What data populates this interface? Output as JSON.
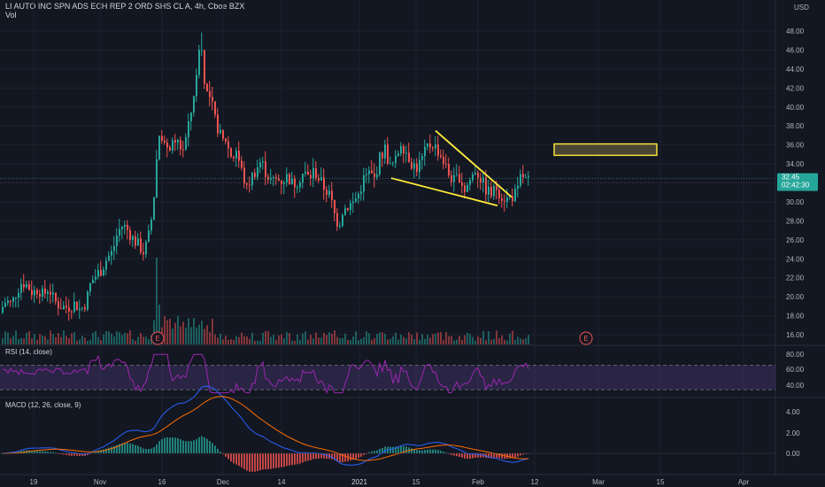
{
  "header": {
    "symbol_line": "LI AUTO INC SPN ADS ECH REP 2 ORD SHS CL A, 4h, Cboe BZX",
    "volume_label": "Vol",
    "currency": "USD"
  },
  "price_tag": {
    "value": "32.45",
    "countdown": "02:42:30"
  },
  "earnings_marker": "E",
  "rsi": {
    "label": "RSI (14, close)",
    "ticks": [
      "80.00",
      "60.00",
      "40.00"
    ]
  },
  "macd": {
    "label": "MACD (12, 26, close, 9)",
    "ticks": [
      "4.00",
      "2.00",
      "0.00"
    ]
  },
  "x_axis": {
    "labels": [
      "19",
      "Nov",
      "16",
      "Dec",
      "14",
      "2021",
      "15",
      "Feb",
      "12",
      "Mar",
      "15",
      "Apr"
    ]
  },
  "colors": {
    "bg": "#131722",
    "up": "#26a69a",
    "down": "#ef5350",
    "rsi": "#9c27b0",
    "macd": "#2962ff",
    "signal": "#ff6d00",
    "annot": "#ffeb3b",
    "tag": "#26a69a"
  },
  "chart_data": {
    "type": "candlestick",
    "title": "LI AUTO INC SPN ADS ECH REP 2 ORD SHS CL A, 4h, Cboe BZX",
    "y_ticks": [
      16,
      18,
      20,
      22,
      24,
      26,
      28,
      30,
      32,
      34,
      36,
      38,
      40,
      42,
      44,
      46,
      48
    ],
    "ylim": [
      15,
      50
    ],
    "last_price": 32.45,
    "close_path": [
      {
        "x": 0,
        "close": 18.6
      },
      {
        "x": 6,
        "close": 19.6
      },
      {
        "x": 12,
        "close": 19.2
      },
      {
        "x": 18,
        "close": 20.6
      },
      {
        "x": 24,
        "close": 21.6
      },
      {
        "x": 30,
        "close": 21.2
      },
      {
        "x": 36,
        "close": 20.4
      },
      {
        "x": 42,
        "close": 20.9
      },
      {
        "x": 48,
        "close": 20.1
      },
      {
        "x": 54,
        "close": 21.0
      },
      {
        "x": 60,
        "close": 19.6
      },
      {
        "x": 66,
        "close": 19.1
      },
      {
        "x": 72,
        "close": 18.9
      },
      {
        "x": 78,
        "close": 19.0
      },
      {
        "x": 84,
        "close": 19.3
      },
      {
        "x": 90,
        "close": 18.6
      },
      {
        "x": 96,
        "close": 19.4
      },
      {
        "x": 102,
        "close": 21.6
      },
      {
        "x": 108,
        "close": 22.3
      },
      {
        "x": 114,
        "close": 22.9
      },
      {
        "x": 120,
        "close": 24.1
      },
      {
        "x": 126,
        "close": 24.7
      },
      {
        "x": 132,
        "close": 26.8
      },
      {
        "x": 138,
        "close": 27.6
      },
      {
        "x": 144,
        "close": 26.9
      },
      {
        "x": 150,
        "close": 26.0
      },
      {
        "x": 156,
        "close": 25.4
      },
      {
        "x": 162,
        "close": 24.6
      },
      {
        "x": 168,
        "close": 26.8
      },
      {
        "x": 172,
        "close": 29.5
      },
      {
        "x": 176,
        "close": 34.4
      },
      {
        "x": 180,
        "close": 38.0
      },
      {
        "x": 184,
        "close": 36.2
      },
      {
        "x": 188,
        "close": 35.1
      },
      {
        "x": 192,
        "close": 36.3
      },
      {
        "x": 196,
        "close": 35.4
      },
      {
        "x": 200,
        "close": 36.4
      },
      {
        "x": 205,
        "close": 35.3
      },
      {
        "x": 210,
        "close": 37.0
      },
      {
        "x": 214,
        "close": 38.8
      },
      {
        "x": 218,
        "close": 41.5
      },
      {
        "x": 222,
        "close": 43.4
      },
      {
        "x": 226,
        "close": 44.2
      },
      {
        "x": 230,
        "close": 43.0
      },
      {
        "x": 234,
        "close": 41.0
      },
      {
        "x": 238,
        "close": 40.6
      },
      {
        "x": 242,
        "close": 38.6
      },
      {
        "x": 246,
        "close": 37.6
      },
      {
        "x": 250,
        "close": 36.3
      },
      {
        "x": 254,
        "close": 36.6
      },
      {
        "x": 258,
        "close": 35.3
      },
      {
        "x": 262,
        "close": 34.6
      },
      {
        "x": 266,
        "close": 35.5
      },
      {
        "x": 270,
        "close": 33.9
      },
      {
        "x": 274,
        "close": 32.6
      },
      {
        "x": 278,
        "close": 31.3
      },
      {
        "x": 282,
        "close": 32.4
      },
      {
        "x": 288,
        "close": 33.4
      },
      {
        "x": 294,
        "close": 34.3
      },
      {
        "x": 300,
        "close": 33.0
      },
      {
        "x": 306,
        "close": 32.1
      },
      {
        "x": 312,
        "close": 32.4
      },
      {
        "x": 318,
        "close": 32.2
      },
      {
        "x": 324,
        "close": 32.7
      },
      {
        "x": 330,
        "close": 31.8
      },
      {
        "x": 336,
        "close": 32.3
      },
      {
        "x": 342,
        "close": 33.1
      },
      {
        "x": 348,
        "close": 32.5
      },
      {
        "x": 354,
        "close": 33.3
      },
      {
        "x": 360,
        "close": 32.3
      },
      {
        "x": 366,
        "close": 31.4
      },
      {
        "x": 372,
        "close": 30.6
      },
      {
        "x": 378,
        "close": 28.3
      },
      {
        "x": 382,
        "close": 27.6
      },
      {
        "x": 386,
        "close": 29.1
      },
      {
        "x": 392,
        "close": 29.6
      },
      {
        "x": 398,
        "close": 29.9
      },
      {
        "x": 404,
        "close": 30.8
      },
      {
        "x": 410,
        "close": 32.4
      },
      {
        "x": 416,
        "close": 33.0
      },
      {
        "x": 422,
        "close": 32.4
      },
      {
        "x": 428,
        "close": 34.6
      },
      {
        "x": 434,
        "close": 35.6
      },
      {
        "x": 440,
        "close": 33.6
      },
      {
        "x": 446,
        "close": 34.3
      },
      {
        "x": 452,
        "close": 36.3
      },
      {
        "x": 458,
        "close": 35.3
      },
      {
        "x": 464,
        "close": 34.1
      },
      {
        "x": 470,
        "close": 33.6
      },
      {
        "x": 476,
        "close": 34.5
      },
      {
        "x": 482,
        "close": 35.8
      },
      {
        "x": 488,
        "close": 36.1
      },
      {
        "x": 494,
        "close": 35.4
      },
      {
        "x": 500,
        "close": 34.3
      },
      {
        "x": 506,
        "close": 32.9
      },
      {
        "x": 512,
        "close": 32.2
      },
      {
        "x": 518,
        "close": 32.7
      },
      {
        "x": 524,
        "close": 31.3
      },
      {
        "x": 530,
        "close": 32.3
      },
      {
        "x": 536,
        "close": 33.4
      },
      {
        "x": 542,
        "close": 32.5
      },
      {
        "x": 548,
        "close": 31.3
      },
      {
        "x": 554,
        "close": 30.8
      },
      {
        "x": 560,
        "close": 31.5
      },
      {
        "x": 566,
        "close": 30.6
      },
      {
        "x": 572,
        "close": 30.3
      },
      {
        "x": 578,
        "close": 30.6
      },
      {
        "x": 584,
        "close": 31.1
      },
      {
        "x": 588,
        "close": 33.0
      },
      {
        "x": 594,
        "close": 32.1
      },
      {
        "x": 600,
        "close": 32.45
      }
    ],
    "annotations": {
      "falling_wedge_upper": [
        [
          492,
          37.5
        ],
        [
          578,
          30.5
        ]
      ],
      "falling_wedge_lower": [
        [
          442,
          32.5
        ],
        [
          562,
          29.6
        ]
      ],
      "target_box": {
        "x_from": 626,
        "x_to": 742,
        "y_from": 34.9,
        "y_to": 36.1
      }
    },
    "rsi_ylim": [
      20,
      100
    ],
    "rsi_band": [
      30,
      70
    ],
    "macd_ylim": [
      -1.6,
      5.2
    ]
  }
}
